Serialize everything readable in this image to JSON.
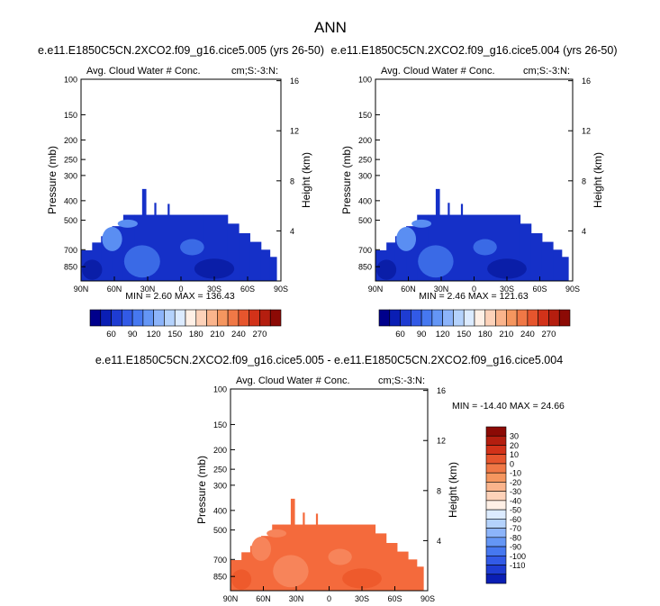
{
  "figure": {
    "title": "ANN"
  },
  "colors": {
    "model_fill": "#1530c8",
    "model_dark": "#0a1ea8",
    "model_light": "#3a6ae6",
    "model_pale": "#5a8ef2",
    "diff_fill": "#f46a3c",
    "diff_light": "#f7845a",
    "diff_dark": "#ee5a2c"
  },
  "chart_data": [
    {
      "id": "panel1",
      "type": "contour",
      "title": "e.e11.E1850C5CN.2XCO2.f09_g16.cice5.005 (yrs 26-50)",
      "left_title": "Avg. Cloud Water # Conc.",
      "right_title": "cm;S:-3:N:",
      "ylabel": "Pressure (mb)",
      "y2label": "Height (km)",
      "x_ticks": [
        "90N",
        "60N",
        "30N",
        "0",
        "30S",
        "60S",
        "90S"
      ],
      "p_ticks": [
        "100",
        "150",
        "200",
        "250",
        "300",
        "400",
        "500",
        "700",
        "850"
      ],
      "p_values": [
        100,
        150,
        200,
        250,
        300,
        400,
        500,
        700,
        850
      ],
      "h_ticks": [
        "4",
        "8",
        "12",
        "16"
      ],
      "h_values": [
        4,
        8,
        12,
        16
      ],
      "ylim_mb": [
        1000,
        100
      ],
      "xlim_lat": [
        90,
        -90
      ],
      "stats": "MIN =   2.60  MAX = 136.43",
      "colorbar_labels": [
        "60",
        "90",
        "120",
        "150",
        "180",
        "210",
        "240",
        "270"
      ],
      "colorbar_colors": [
        "#00008c",
        "#0a1eb4",
        "#1e3cd2",
        "#325ae6",
        "#4678f0",
        "#6496f5",
        "#8cb4fa",
        "#b4d2fc",
        "#dcebff",
        "#fff0e6",
        "#fdd2b9",
        "#fab48c",
        "#f5965f",
        "#f07846",
        "#e6552d",
        "#d23219",
        "#b41e0f",
        "#8c0a05"
      ]
    },
    {
      "id": "panel2",
      "type": "contour",
      "title": "e.e11.E1850C5CN.2XCO2.f09_g16.cice5.004 (yrs 26-50)",
      "left_title": "Avg. Cloud Water # Conc.",
      "right_title": "cm;S:-3:N:",
      "ylabel": "Pressure (mb)",
      "y2label": "Height (km)",
      "x_ticks": [
        "90N",
        "60N",
        "30N",
        "0",
        "30S",
        "60S",
        "90S"
      ],
      "p_ticks": [
        "100",
        "150",
        "200",
        "250",
        "300",
        "400",
        "500",
        "700",
        "850"
      ],
      "p_values": [
        100,
        150,
        200,
        250,
        300,
        400,
        500,
        700,
        850
      ],
      "h_ticks": [
        "4",
        "8",
        "12",
        "16"
      ],
      "h_values": [
        4,
        8,
        12,
        16
      ],
      "ylim_mb": [
        1000,
        100
      ],
      "xlim_lat": [
        90,
        -90
      ],
      "stats": "MIN =   2.46  MAX = 121.63",
      "colorbar_labels": [
        "60",
        "90",
        "120",
        "150",
        "180",
        "210",
        "240",
        "270"
      ],
      "colorbar_colors": [
        "#00008c",
        "#0a1eb4",
        "#1e3cd2",
        "#325ae6",
        "#4678f0",
        "#6496f5",
        "#8cb4fa",
        "#b4d2fc",
        "#dcebff",
        "#fff0e6",
        "#fdd2b9",
        "#fab48c",
        "#f5965f",
        "#f07846",
        "#e6552d",
        "#d23219",
        "#b41e0f",
        "#8c0a05"
      ]
    },
    {
      "id": "panel3",
      "type": "contour",
      "title": "e.e11.E1850C5CN.2XCO2.f09_g16.cice5.005 - e.e11.E1850C5CN.2XCO2.f09_g16.cice5.004",
      "left_title": "Avg. Cloud Water # Conc.",
      "right_title": "cm;S:-3:N:",
      "ylabel": "Pressure (mb)",
      "y2label": "Height (km)",
      "x_ticks": [
        "90N",
        "60N",
        "30N",
        "0",
        "30S",
        "60S",
        "90S"
      ],
      "p_ticks": [
        "100",
        "150",
        "200",
        "250",
        "300",
        "400",
        "500",
        "700",
        "850"
      ],
      "p_values": [
        100,
        150,
        200,
        250,
        300,
        400,
        500,
        700,
        850
      ],
      "h_ticks": [
        "4",
        "8",
        "12",
        "16"
      ],
      "h_values": [
        4,
        8,
        12,
        16
      ],
      "ylim_mb": [
        1000,
        100
      ],
      "xlim_lat": [
        90,
        -90
      ],
      "stats": "MIN = -14.40  MAX =  24.66",
      "colorbar_labels": [
        "30",
        "20",
        "10",
        "0",
        "-10",
        "-20",
        "-30",
        "-40",
        "-50",
        "-60",
        "-70",
        "-80",
        "-90",
        "-100",
        "-110"
      ],
      "colorbar_colors": [
        "#8c0a05",
        "#b41e0f",
        "#d23219",
        "#e6552d",
        "#f07846",
        "#f5965f",
        "#fab48c",
        "#fdd2b9",
        "#fff0e6",
        "#dcebff",
        "#b4d2fc",
        "#8cb4fa",
        "#6496f5",
        "#4678f0",
        "#325ae6",
        "#1e3cd2",
        "#0a1eb4"
      ]
    }
  ]
}
